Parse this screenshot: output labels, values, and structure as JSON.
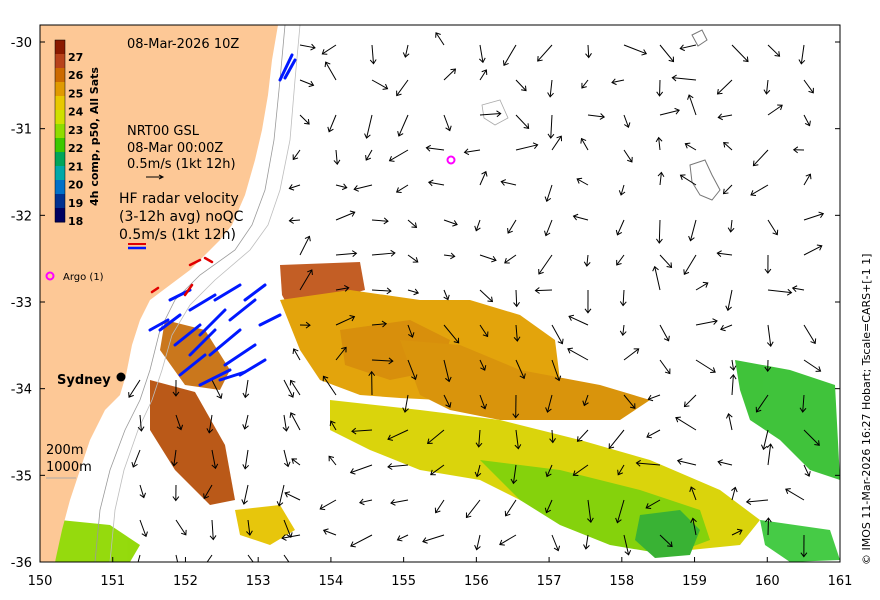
{
  "title": "08-Mar-2026 10Z",
  "colorbar": {
    "label": "4h comp, p50, All Sats",
    "ticks": [
      "27",
      "26",
      "25",
      "24",
      "23",
      "22",
      "21",
      "20",
      "19",
      "18"
    ],
    "colors": [
      "#8b1a00",
      "#b8421a",
      "#cc6a00",
      "#e09a00",
      "#e8c800",
      "#cfe000",
      "#8fdc00",
      "#3cc800",
      "#00a55a",
      "#00a8a8",
      "#0070c8",
      "#003090",
      "#000060"
    ]
  },
  "nrt": {
    "line1": "NRT00 GSL",
    "line2": "08-Mar 00:00Z",
    "line3": "0.5m/s (1kt 12h)"
  },
  "hf": {
    "line1": "HF radar velocity",
    "line2": "(3-12h avg) noQC",
    "line3": "0.5m/s (1kt 12h)"
  },
  "argo": {
    "label": "Argo (1)",
    "color": "#ff00ff"
  },
  "city": {
    "label": "Sydney"
  },
  "depth": {
    "d1": "200m",
    "d2": "1000m"
  },
  "axes": {
    "x_ticks": [
      "150",
      "151",
      "152",
      "153",
      "154",
      "155",
      "156",
      "157",
      "158",
      "159",
      "160",
      "161"
    ],
    "y_ticks": [
      "-30",
      "-31",
      "-32",
      "-33",
      "-34",
      "-35",
      "-36"
    ]
  },
  "credit": "© IMOS 11-Mar-2026 16:27 Hobart; Tscale=CARS+[-1 1]",
  "colors": {
    "land": "#fdc896",
    "radar": "#0018ff",
    "radar_red": "#e00000",
    "arrow": "#000000"
  }
}
